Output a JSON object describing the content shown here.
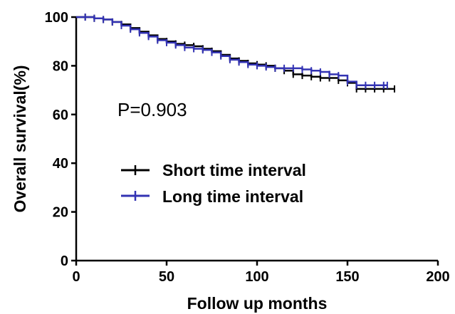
{
  "chart_data": {
    "type": "line",
    "title": "",
    "xlabel": "Follow up months",
    "ylabel": "Overall survival(%)",
    "xlim": [
      0,
      200
    ],
    "ylim": [
      0,
      100
    ],
    "xticks": [
      0,
      50,
      100,
      150,
      200
    ],
    "yticks": [
      0,
      20,
      40,
      60,
      80,
      100
    ],
    "grid": false,
    "legend_position": "center-left",
    "annotation": "P=0.903",
    "series": [
      {
        "name": "Short time interval",
        "color": "#000000",
        "x": [
          0,
          5,
          10,
          15,
          20,
          25,
          30,
          35,
          40,
          45,
          50,
          55,
          60,
          65,
          70,
          75,
          80,
          85,
          90,
          95,
          100,
          105,
          110,
          115,
          120,
          125,
          130,
          135,
          140,
          145,
          150,
          155,
          160,
          165,
          170,
          176
        ],
        "y": [
          100,
          100,
          99.5,
          99,
          98,
          97,
          95.5,
          94,
          92.5,
          91,
          90,
          89,
          88.5,
          88,
          87,
          86,
          84.5,
          83,
          82,
          81,
          80.5,
          80,
          79,
          78,
          76.5,
          76,
          75.5,
          75,
          75,
          74,
          73,
          70.5,
          70.5,
          70.5,
          70.5,
          70.5
        ]
      },
      {
        "name": "Long time interval",
        "color": "#3333b3",
        "x": [
          0,
          5,
          10,
          15,
          20,
          25,
          30,
          35,
          40,
          45,
          50,
          55,
          60,
          65,
          70,
          75,
          80,
          85,
          90,
          95,
          100,
          105,
          110,
          115,
          120,
          125,
          130,
          135,
          140,
          145,
          150,
          155,
          160,
          165,
          170,
          172
        ],
        "y": [
          100,
          100,
          99.5,
          99,
          98,
          96.5,
          95,
          93.5,
          92,
          90.5,
          89.5,
          88.5,
          87.5,
          87,
          86.5,
          85.5,
          84,
          82.5,
          81.5,
          80.5,
          80,
          79.5,
          79,
          79,
          79,
          78.5,
          78,
          77.5,
          76.5,
          76,
          73.5,
          72,
          72,
          72,
          72,
          72
        ]
      }
    ]
  }
}
